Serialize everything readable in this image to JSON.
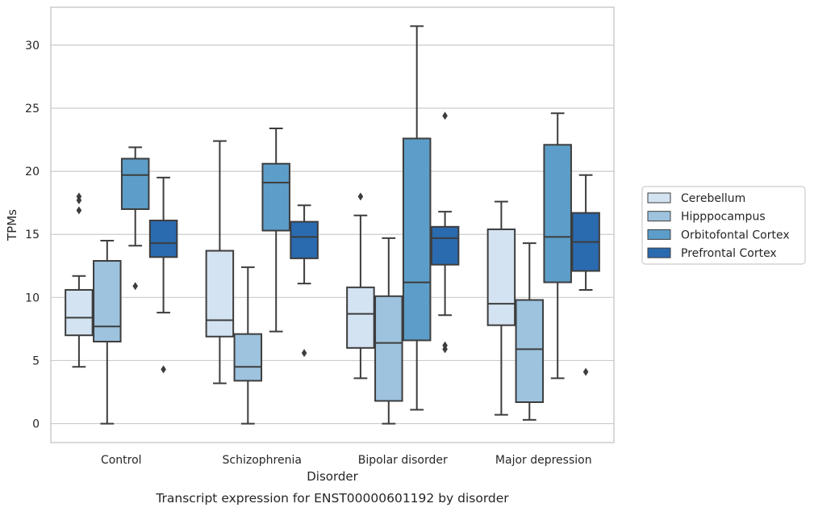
{
  "chart_data": {
    "type": "box",
    "caption": "Transcript expression for ENST00000601192 by disorder",
    "xlabel": "Disorder",
    "ylabel": "TPMs",
    "ylim": [
      -1.5,
      33
    ],
    "yticks": [
      0,
      5,
      10,
      15,
      20,
      25,
      30
    ],
    "grid": "horizontal",
    "legend_position": "right",
    "categories": [
      "Control",
      "Schizophrenia",
      "Bipolar disorder",
      "Major depression"
    ],
    "series": [
      {
        "name": "Cerebellum",
        "color": "#d3e3f2",
        "boxes": [
          {
            "whisker_low": 4.5,
            "q1": 7.0,
            "median": 8.4,
            "q3": 10.6,
            "whisker_high": 11.7,
            "outliers": [
              16.9,
              17.7,
              18.0
            ]
          },
          {
            "whisker_low": 3.2,
            "q1": 6.9,
            "median": 8.2,
            "q3": 13.7,
            "whisker_high": 22.4,
            "outliers": []
          },
          {
            "whisker_low": 3.6,
            "q1": 6.0,
            "median": 8.7,
            "q3": 10.8,
            "whisker_high": 16.5,
            "outliers": [
              18.0
            ]
          },
          {
            "whisker_low": 0.7,
            "q1": 7.8,
            "median": 9.5,
            "q3": 15.4,
            "whisker_high": 17.6,
            "outliers": []
          }
        ]
      },
      {
        "name": "Hipppocampus",
        "color": "#9dc3de",
        "boxes": [
          {
            "whisker_low": 0.0,
            "q1": 6.5,
            "median": 7.7,
            "q3": 12.9,
            "whisker_high": 14.5,
            "outliers": []
          },
          {
            "whisker_low": 0.0,
            "q1": 3.4,
            "median": 4.5,
            "q3": 7.1,
            "whisker_high": 12.4,
            "outliers": []
          },
          {
            "whisker_low": 0.0,
            "q1": 1.8,
            "median": 6.4,
            "q3": 10.1,
            "whisker_high": 14.7,
            "outliers": []
          },
          {
            "whisker_low": 0.3,
            "q1": 1.7,
            "median": 5.9,
            "q3": 9.8,
            "whisker_high": 14.3,
            "outliers": []
          }
        ]
      },
      {
        "name": "Orbitofontal Cortex",
        "color": "#5c9ec9",
        "boxes": [
          {
            "whisker_low": 14.1,
            "q1": 17.0,
            "median": 19.7,
            "q3": 21.0,
            "whisker_high": 21.9,
            "outliers": [
              10.9
            ]
          },
          {
            "whisker_low": 7.3,
            "q1": 15.3,
            "median": 19.1,
            "q3": 20.6,
            "whisker_high": 23.4,
            "outliers": []
          },
          {
            "whisker_low": 1.1,
            "q1": 6.6,
            "median": 11.2,
            "q3": 22.6,
            "whisker_high": 31.5,
            "outliers": []
          },
          {
            "whisker_low": 3.6,
            "q1": 11.2,
            "median": 14.8,
            "q3": 22.1,
            "whisker_high": 24.6,
            "outliers": []
          }
        ]
      },
      {
        "name": "Prefrontal Cortex",
        "color": "#2a6aaf",
        "boxes": [
          {
            "whisker_low": 8.8,
            "q1": 13.2,
            "median": 14.3,
            "q3": 16.1,
            "whisker_high": 19.5,
            "outliers": [
              4.3
            ]
          },
          {
            "whisker_low": 11.1,
            "q1": 13.1,
            "median": 14.8,
            "q3": 16.0,
            "whisker_high": 17.3,
            "outliers": [
              5.6
            ]
          },
          {
            "whisker_low": 8.6,
            "q1": 12.6,
            "median": 14.7,
            "q3": 15.6,
            "whisker_high": 16.8,
            "outliers": [
              5.9,
              6.2,
              24.4
            ]
          },
          {
            "whisker_low": 10.6,
            "q1": 12.1,
            "median": 14.4,
            "q3": 16.7,
            "whisker_high": 19.7,
            "outliers": [
              4.1
            ]
          }
        ]
      }
    ]
  }
}
